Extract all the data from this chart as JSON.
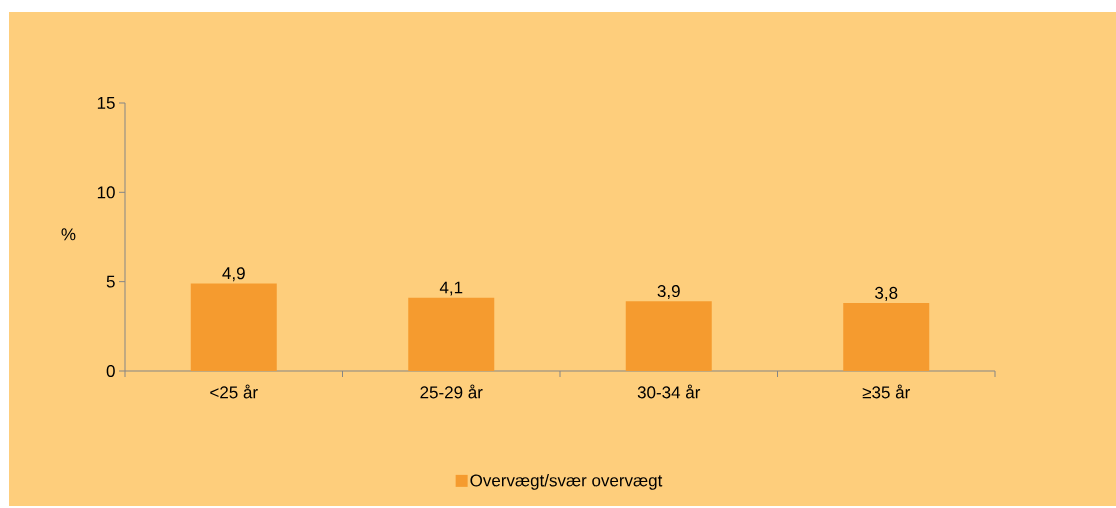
{
  "chart_data": {
    "type": "bar",
    "ylabel": "%",
    "categories": [
      "<25 år",
      "25-29 år",
      "30-34 år",
      "≥35 år"
    ],
    "series": [
      {
        "name": "Overvægt/svær overvægt",
        "color": "#f59b2f",
        "values": [
          4.9,
          4.1,
          3.9,
          3.8
        ],
        "value_labels": [
          "4,9",
          "4,1",
          "3,9",
          "3,8"
        ]
      }
    ],
    "ylim": [
      0,
      15
    ],
    "yticks": [
      0,
      5,
      10,
      15
    ],
    "legend": "bottom"
  }
}
